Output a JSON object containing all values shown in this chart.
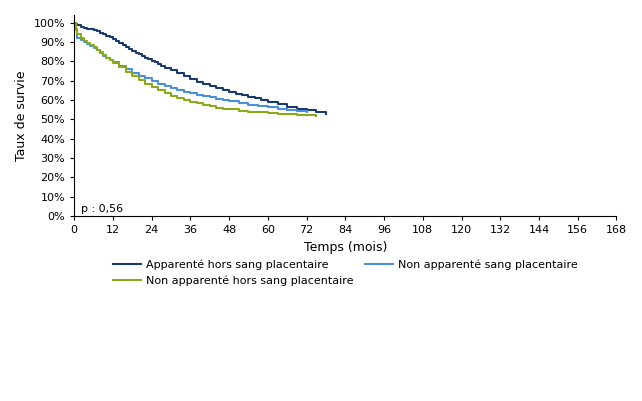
{
  "title": "",
  "xlabel": "Temps (mois)",
  "ylabel": "Taux de survie",
  "p_value_text": "p : 0,56",
  "ylim": [
    0,
    1.04
  ],
  "xlim": [
    0,
    168
  ],
  "xticks": [
    0,
    12,
    24,
    36,
    48,
    60,
    72,
    84,
    96,
    108,
    120,
    132,
    144,
    156,
    168
  ],
  "yticks": [
    0.0,
    0.1,
    0.2,
    0.3,
    0.4,
    0.5,
    0.6,
    0.7,
    0.8,
    0.9,
    1.0
  ],
  "background_color": "#ffffff",
  "series": [
    {
      "label": "Apparenté hors sang placentaire",
      "color": "#1a3a6b",
      "linewidth": 1.5,
      "x": [
        0,
        0.5,
        1,
        2,
        3,
        4,
        5,
        6,
        7,
        8,
        9,
        10,
        11,
        12,
        13,
        14,
        15,
        16,
        17,
        18,
        19,
        20,
        21,
        22,
        23,
        24,
        25,
        26,
        27,
        28,
        30,
        32,
        34,
        36,
        38,
        40,
        42,
        44,
        46,
        48,
        50,
        52,
        54,
        56,
        58,
        60,
        63,
        66,
        69,
        72,
        75,
        78
      ],
      "y": [
        1.0,
        0.995,
        0.99,
        0.98,
        0.975,
        0.97,
        0.965,
        0.96,
        0.955,
        0.948,
        0.94,
        0.932,
        0.924,
        0.916,
        0.905,
        0.895,
        0.885,
        0.875,
        0.865,
        0.855,
        0.845,
        0.838,
        0.83,
        0.82,
        0.812,
        0.804,
        0.796,
        0.785,
        0.775,
        0.768,
        0.756,
        0.738,
        0.724,
        0.71,
        0.695,
        0.682,
        0.67,
        0.66,
        0.65,
        0.64,
        0.632,
        0.624,
        0.616,
        0.608,
        0.6,
        0.592,
        0.578,
        0.566,
        0.556,
        0.548,
        0.538,
        0.528
      ]
    },
    {
      "label": "Non apparenté sang placentaire",
      "color": "#4a90d9",
      "linewidth": 1.5,
      "x": [
        0,
        0.5,
        1,
        2,
        3,
        4,
        5,
        6,
        7,
        8,
        9,
        10,
        11,
        12,
        14,
        16,
        18,
        20,
        22,
        24,
        26,
        28,
        30,
        32,
        34,
        36,
        38,
        40,
        42,
        44,
        46,
        48,
        51,
        54,
        57,
        60,
        63,
        66,
        69,
        72
      ],
      "y": [
        1.0,
        0.96,
        0.92,
        0.91,
        0.9,
        0.89,
        0.88,
        0.87,
        0.86,
        0.845,
        0.83,
        0.818,
        0.806,
        0.795,
        0.775,
        0.758,
        0.742,
        0.726,
        0.712,
        0.698,
        0.685,
        0.673,
        0.662,
        0.652,
        0.643,
        0.635,
        0.627,
        0.62,
        0.613,
        0.606,
        0.6,
        0.594,
        0.584,
        0.575,
        0.568,
        0.562,
        0.556,
        0.55,
        0.545,
        0.54
      ]
    },
    {
      "label": "Non apparenté hors sang placentaire",
      "color": "#8aaa1a",
      "linewidth": 1.5,
      "x": [
        0,
        0.5,
        1,
        2,
        3,
        4,
        5,
        6,
        7,
        8,
        9,
        10,
        11,
        12,
        14,
        16,
        18,
        20,
        22,
        24,
        26,
        28,
        30,
        32,
        34,
        36,
        38,
        40,
        42,
        44,
        46,
        48,
        51,
        54,
        57,
        60,
        63,
        66,
        69,
        72,
        75
      ],
      "y": [
        1.0,
        0.97,
        0.94,
        0.92,
        0.908,
        0.896,
        0.884,
        0.872,
        0.86,
        0.846,
        0.832,
        0.819,
        0.806,
        0.793,
        0.769,
        0.746,
        0.724,
        0.703,
        0.684,
        0.666,
        0.65,
        0.635,
        0.622,
        0.61,
        0.6,
        0.591,
        0.582,
        0.574,
        0.567,
        0.561,
        0.556,
        0.551,
        0.545,
        0.54,
        0.536,
        0.532,
        0.528,
        0.525,
        0.522,
        0.52,
        0.518
      ]
    }
  ],
  "legend_order": [
    0,
    2,
    1
  ],
  "legend_ncol": 2,
  "legend_fontsize": 8
}
